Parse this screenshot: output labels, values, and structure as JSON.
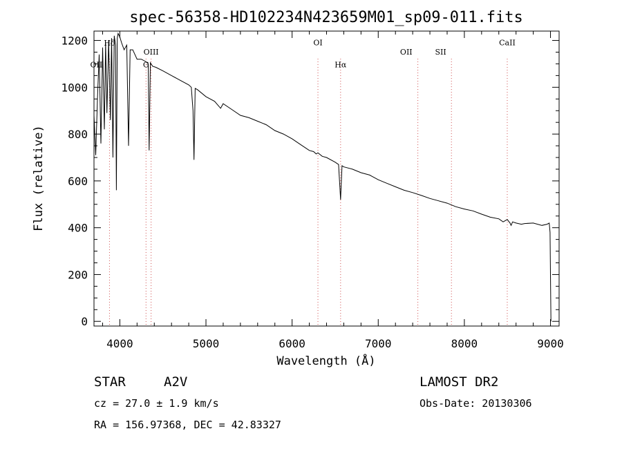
{
  "chart_data": {
    "type": "line",
    "title": "spec-56358-HD102234N423659M01_sp09-011.fits",
    "xlabel": "Wavelength (Å)",
    "ylabel": "Flux (relative)",
    "xlim": [
      3700,
      9100
    ],
    "ylim": [
      -20,
      1240
    ],
    "x_ticks": [
      4000,
      5000,
      6000,
      7000,
      8000,
      9000
    ],
    "y_ticks": [
      0,
      200,
      400,
      600,
      800,
      1000,
      1200
    ],
    "grid": false,
    "line_color": "#000000",
    "marker_color": "#d05050",
    "spectral_lines": [
      {
        "label": "OII",
        "x": 3727,
        "label_y": 1085
      },
      {
        "label": "Hδ",
        "x": 3880,
        "label_y": 1178
      },
      {
        "label": "G",
        "x": 4304,
        "label_y": 1085
      },
      {
        "label": "OIII",
        "x": 4363,
        "label_y": 1140
      },
      {
        "label": "OI",
        "x": 6300,
        "label_y": 1180
      },
      {
        "label": "Hα",
        "x": 6563,
        "label_y": 1085
      },
      {
        "label": "OII",
        "x": 7325,
        "label_y": 1140
      },
      {
        "label": "SII",
        "x": 7725,
        "label_y": 1140
      },
      {
        "label": "CaII",
        "x": 8498,
        "label_y": 1180
      }
    ],
    "marker_lines_x": [
      3880,
      4304,
      4363,
      6300,
      6563,
      7460,
      7850,
      8498
    ],
    "spectrum": {
      "x": [
        3700,
        3720,
        3740,
        3760,
        3780,
        3800,
        3820,
        3835,
        3850,
        3870,
        3890,
        3905,
        3920,
        3935,
        3950,
        3960,
        3970,
        3980,
        4000,
        4020,
        4050,
        4080,
        4101,
        4120,
        4150,
        4200,
        4250,
        4300,
        4330,
        4340,
        4355,
        4380,
        4420,
        4500,
        4600,
        4700,
        4800,
        4830,
        4850,
        4861,
        4875,
        4900,
        5000,
        5100,
        5170,
        5200,
        5300,
        5400,
        5500,
        5600,
        5700,
        5800,
        5900,
        6000,
        6100,
        6200,
        6250,
        6280,
        6300,
        6350,
        6400,
        6500,
        6540,
        6563,
        6580,
        6600,
        6700,
        6800,
        6900,
        7000,
        7100,
        7200,
        7300,
        7400,
        7500,
        7600,
        7700,
        7800,
        7900,
        8000,
        8100,
        8200,
        8300,
        8400,
        8450,
        8498,
        8530,
        8542,
        8560,
        8600,
        8662,
        8700,
        8800,
        8900,
        8960,
        8985,
        8995,
        9000,
        9005
      ],
      "y": [
        880,
        710,
        950,
        1140,
        760,
        1170,
        820,
        1190,
        890,
        1200,
        860,
        1210,
        700,
        1220,
        1180,
        560,
        1210,
        1230,
        1215,
        1190,
        1160,
        1180,
        750,
        1160,
        1160,
        1120,
        1120,
        1110,
        1100,
        730,
        1105,
        1090,
        1085,
        1070,
        1050,
        1030,
        1010,
        1000,
        900,
        690,
        995,
        990,
        960,
        940,
        910,
        930,
        905,
        880,
        870,
        855,
        840,
        815,
        800,
        780,
        755,
        730,
        725,
        715,
        720,
        705,
        700,
        680,
        670,
        520,
        665,
        660,
        650,
        635,
        625,
        605,
        590,
        575,
        560,
        550,
        538,
        525,
        515,
        505,
        490,
        480,
        472,
        458,
        445,
        438,
        425,
        435,
        420,
        410,
        425,
        420,
        415,
        418,
        420,
        410,
        415,
        420,
        380,
        200,
        0
      ]
    }
  },
  "info": {
    "object_type": "STAR",
    "spectral_class": "A2V",
    "survey": "LAMOST DR2",
    "cz": "cz = 27.0 ± 1.9 km/s",
    "obs_date": "Obs-Date: 20130306",
    "coords": "RA = 156.97368, DEC =  42.83327"
  }
}
